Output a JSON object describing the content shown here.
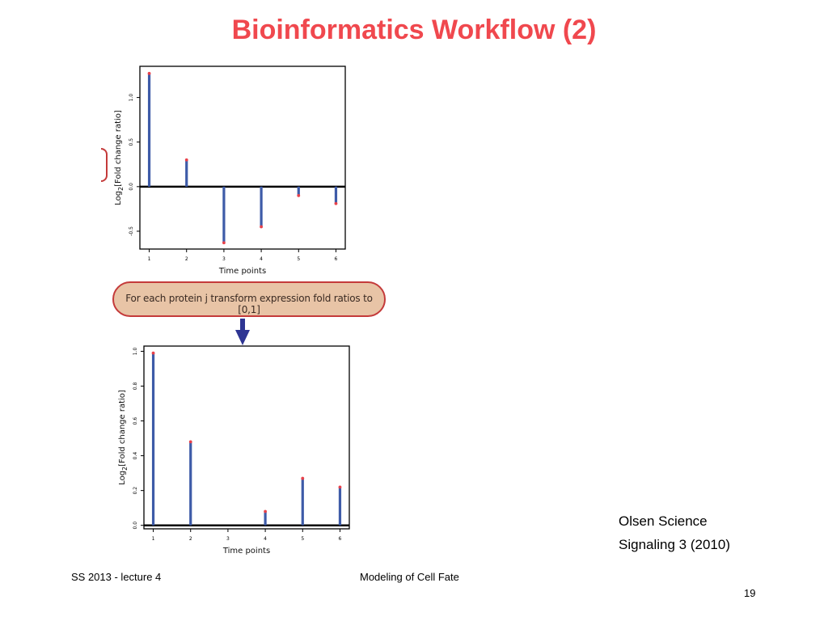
{
  "title": "Bioinformatics Workflow (2)",
  "callout": {
    "text": "For each protein j transform expression fold ratios to [0,1]"
  },
  "citation": {
    "line1": "Olsen Science",
    "line2": "Signaling 3 (2010)"
  },
  "footer": {
    "left": "SS 2013 - lecture 4",
    "center": "Modeling of Cell Fate",
    "page": "19"
  },
  "colors": {
    "title": "#f0484e",
    "stem": "#3e5ba8",
    "tip": "#e8414a",
    "callout_fill": "#e8c4a6",
    "callout_border": "#c43a3a",
    "arrow": "#2e3593"
  },
  "chart_data": [
    {
      "type": "stem",
      "xlabel": "Time points",
      "ylabel": "Log2[Fold change ratio]",
      "x": [
        1,
        2,
        3,
        4,
        5,
        6
      ],
      "values": [
        1.27,
        0.3,
        -0.63,
        -0.45,
        -0.1,
        -0.19
      ],
      "xlim": [
        0.75,
        6.25
      ],
      "ylim": [
        -0.7,
        1.35
      ],
      "yticks": [
        -0.5,
        0.0,
        0.5,
        1.0
      ],
      "ytick_labels": [
        "-0.5",
        "0.0",
        "0.5",
        "1.0"
      ],
      "xtick_labels": [
        "1",
        "2",
        "3",
        "4",
        "5",
        "6"
      ],
      "baseline": 0
    },
    {
      "type": "stem",
      "xlabel": "Time points",
      "ylabel": "Log2[Fold change ratio]",
      "x": [
        1,
        2,
        3,
        4,
        5,
        6
      ],
      "values": [
        0.99,
        0.48,
        0.0,
        0.08,
        0.27,
        0.22
      ],
      "xlim": [
        0.75,
        6.25
      ],
      "ylim": [
        -0.02,
        1.03
      ],
      "yticks": [
        0.0,
        0.2,
        0.4,
        0.6,
        0.8,
        1.0
      ],
      "ytick_labels": [
        "0.0",
        "0.2",
        "0.4",
        "0.6",
        "0.8",
        "1.0"
      ],
      "xtick_labels": [
        "1",
        "2",
        "3",
        "4",
        "5",
        "6"
      ],
      "baseline": 0
    }
  ]
}
